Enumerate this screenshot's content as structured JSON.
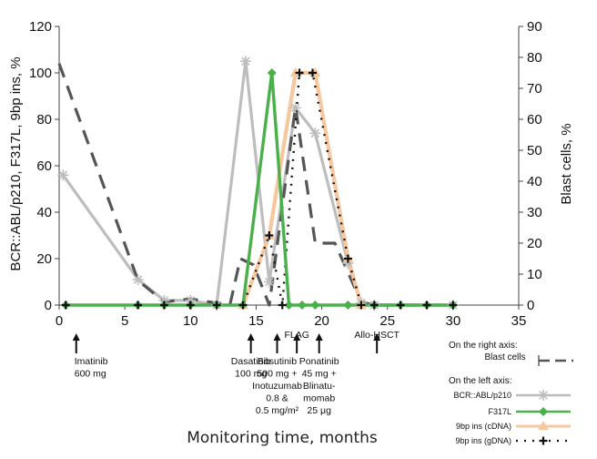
{
  "chart_data": {
    "type": "line",
    "xlabel": "Monitoring time, months",
    "ylabel_left": "BCR::ABL/p210, F317L, 9bp ins, %",
    "ylabel_right": "Blast cells, %",
    "xlim": [
      0,
      35
    ],
    "ylim_left": [
      0,
      120
    ],
    "ylim_right": [
      0,
      90
    ],
    "x_ticks": [
      0,
      5,
      10,
      15,
      20,
      25,
      30,
      35
    ],
    "y_ticks_left": [
      0,
      20,
      40,
      60,
      80,
      100,
      120
    ],
    "y_ticks_right": [
      0,
      10,
      20,
      30,
      40,
      50,
      60,
      70,
      80,
      90
    ],
    "series": [
      {
        "name": "BCR::ABL/p210",
        "axis": "left",
        "color": "#bdbdbd",
        "marker": "asterisk",
        "points": [
          [
            0.3,
            56
          ],
          [
            6,
            11
          ],
          [
            8,
            2
          ],
          [
            10,
            2
          ],
          [
            12,
            0
          ],
          [
            14.2,
            105
          ],
          [
            16,
            10
          ],
          [
            18,
            85
          ],
          [
            19.5,
            74
          ],
          [
            22,
            18
          ],
          [
            23,
            1
          ],
          [
            24,
            0
          ],
          [
            30,
            0
          ]
        ]
      },
      {
        "name": "F317L",
        "axis": "left",
        "color": "#49b04a",
        "marker": "diamond",
        "points": [
          [
            0.5,
            0
          ],
          [
            6,
            0
          ],
          [
            8,
            0
          ],
          [
            10,
            0
          ],
          [
            12,
            0
          ],
          [
            14,
            0
          ],
          [
            16.2,
            100
          ],
          [
            17.5,
            0
          ],
          [
            18.5,
            0
          ],
          [
            19.5,
            0
          ],
          [
            22,
            0
          ],
          [
            24,
            0
          ],
          [
            26,
            0
          ],
          [
            28,
            0
          ],
          [
            30,
            0
          ]
        ]
      },
      {
        "name": "9bp ins (cDNA)",
        "axis": "left",
        "color": "#f7c79e",
        "marker": "triangle",
        "points": [
          [
            14,
            0
          ],
          [
            16,
            30
          ],
          [
            18,
            100
          ],
          [
            19.5,
            100
          ],
          [
            22,
            20
          ],
          [
            23,
            0
          ]
        ]
      },
      {
        "name": "9bp ins (gDNA)",
        "axis": "left",
        "color": "#111111",
        "marker": "cross",
        "points": [
          [
            0.5,
            0
          ],
          [
            6,
            0
          ],
          [
            8,
            0
          ],
          [
            10,
            0
          ],
          [
            12,
            0
          ],
          [
            14,
            0
          ],
          [
            16,
            30
          ],
          [
            17,
            0
          ],
          [
            18.3,
            100
          ],
          [
            19.3,
            100
          ],
          [
            22,
            20
          ],
          [
            23,
            0
          ],
          [
            24,
            0
          ],
          [
            26,
            0
          ],
          [
            28,
            0
          ],
          [
            30,
            0
          ]
        ]
      },
      {
        "name": "Blast cells",
        "axis": "right",
        "color": "#555555",
        "marker": "none",
        "dashed": true,
        "points": [
          [
            0,
            78
          ],
          [
            6,
            8
          ],
          [
            8,
            1
          ],
          [
            10,
            2
          ],
          [
            13,
            0
          ],
          [
            13.8,
            15
          ],
          [
            14.8,
            13
          ],
          [
            16,
            0
          ],
          [
            18,
            64
          ],
          [
            19.5,
            20
          ],
          [
            21,
            20
          ],
          [
            23,
            1
          ],
          [
            24,
            0
          ],
          [
            30,
            0
          ]
        ]
      }
    ],
    "annotations": [
      {
        "x": 1.3,
        "lines": [
          "Imatinib",
          "600 mg"
        ]
      },
      {
        "x": 14.6,
        "lines": [
          "Dasatinib",
          "100 mg"
        ]
      },
      {
        "x": 16.6,
        "lines": [
          "Bosutinib",
          "500 mg +",
          "Inotuzumab",
          "0.8 &",
          "0.5 mg/m²"
        ]
      },
      {
        "x": 18.1,
        "lines": [
          "FLAG"
        ]
      },
      {
        "x": 19.8,
        "lines": [
          "Ponatinib",
          "45 mg +",
          "Blinatu-",
          "momab",
          "25 μg"
        ]
      },
      {
        "x": 24.2,
        "lines": [
          "Allo-HSCT"
        ]
      }
    ],
    "legend": {
      "right_axis_label": "On the right axis:",
      "left_axis_label": "On the left axis:"
    }
  }
}
